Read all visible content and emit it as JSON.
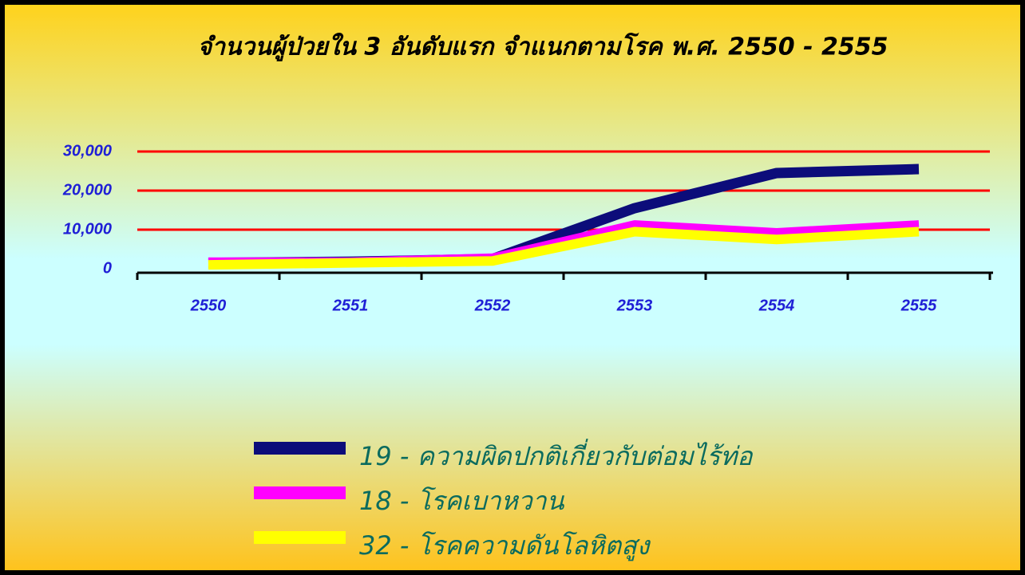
{
  "chart_data": {
    "type": "line",
    "title": "จำนวนผู้ป่วยใน 3 อันดับแรก จำแนกตามโรค พ.ศ. 2550 - 2555",
    "categories": [
      "2550",
      "2551",
      "2552",
      "2553",
      "2554",
      "2555"
    ],
    "series": [
      {
        "name": "19 - ความผิดปกติเกี่ยวกับต่อมไร้ท่อ",
        "color": "#0c0c7a",
        "values": [
          1500,
          1800,
          2500,
          15500,
          24500,
          25500
        ]
      },
      {
        "name": "18 - โรคเบาหวาน",
        "color": "#ff00ff",
        "values": [
          2000,
          2000,
          3000,
          11500,
          9500,
          11500
        ]
      },
      {
        "name": "32 - โรคความดันโลหิตสูง",
        "color": "#ffff00",
        "values": [
          1000,
          1500,
          2000,
          9500,
          7500,
          9500
        ]
      }
    ],
    "ylim": [
      0,
      30000
    ],
    "yticks": [
      0,
      {
        "value": 10000,
        "label": "10,000"
      },
      {
        "value": 20000,
        "label": "20,000"
      },
      {
        "value": 30000,
        "label": "30,000"
      }
    ],
    "grid": true,
    "grid_color": "#ff0000",
    "legend": "bottom"
  }
}
